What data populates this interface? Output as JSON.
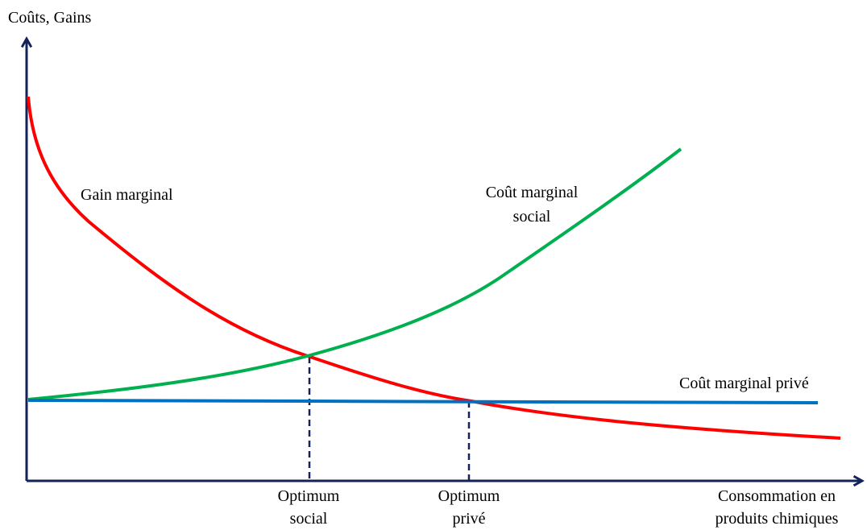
{
  "axes": {
    "y_label": "Coûts, Gains",
    "x_label": [
      "Consommation en",
      "produits chimiques"
    ]
  },
  "curves": {
    "gain": "Gain marginal",
    "social_cost": [
      "Coût marginal",
      "social"
    ],
    "private_cost": "Coût marginal privé"
  },
  "optima": {
    "social": [
      "Optimum",
      "social"
    ],
    "private": [
      "Optimum",
      "privé"
    ]
  }
}
